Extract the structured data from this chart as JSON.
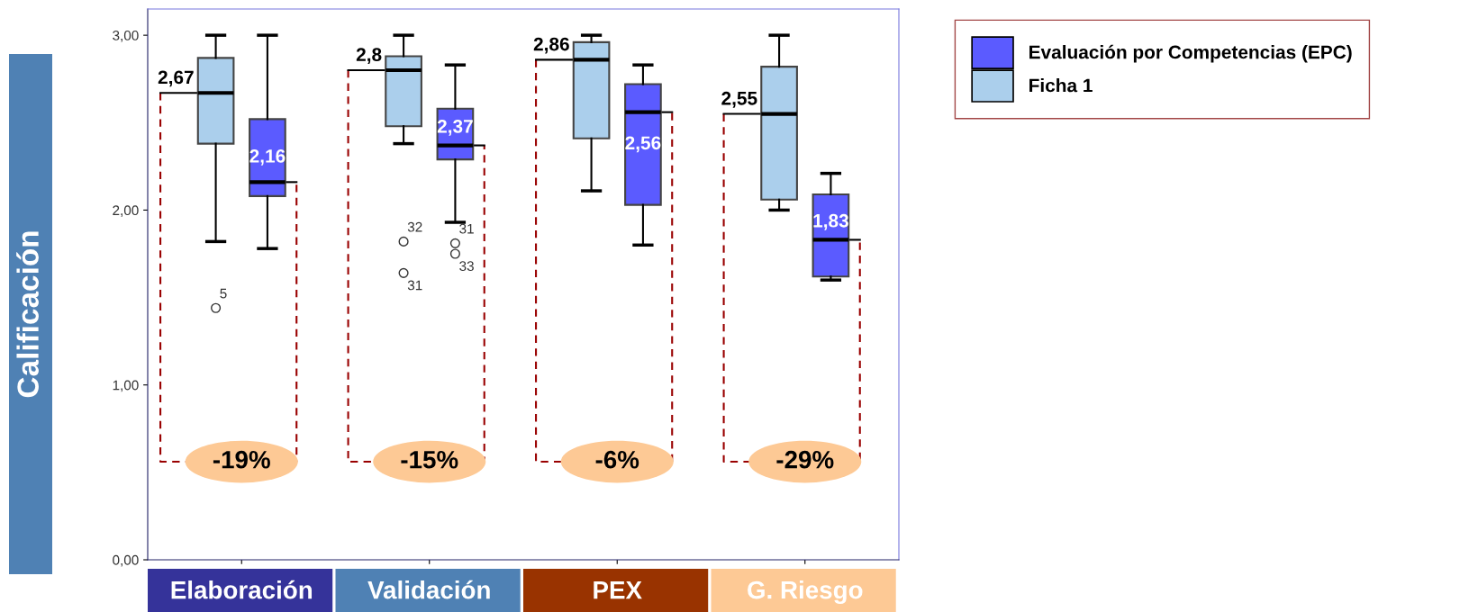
{
  "chart_data": {
    "type": "box",
    "ylabel": "Calificación",
    "categories": [
      "Elaboración",
      "Validación",
      "PEX",
      "G. Riesgo"
    ],
    "series": [
      {
        "name": "Ficha 1",
        "color": "#abcfec",
        "boxes": [
          {
            "low": 1.82,
            "q1": 2.38,
            "median": 2.67,
            "q3": 2.87,
            "high": 3.0,
            "outliers": [
              1.44
            ]
          },
          {
            "low": 2.38,
            "q1": 2.48,
            "median": 2.8,
            "q3": 2.88,
            "high": 3.0,
            "outliers": [
              1.82,
              1.64
            ]
          },
          {
            "low": 2.11,
            "q1": 2.41,
            "median": 2.86,
            "q3": 2.96,
            "high": 3.0
          },
          {
            "low": 2.0,
            "q1": 2.06,
            "median": 2.55,
            "q3": 2.82,
            "high": 3.0
          }
        ]
      },
      {
        "name": "Evaluación por Competencias (EPC)",
        "color": "#5b5bff",
        "boxes": [
          {
            "low": 1.78,
            "q1": 2.08,
            "median": 2.16,
            "q3": 2.52,
            "high": 3.0
          },
          {
            "low": 1.93,
            "q1": 2.29,
            "median": 2.37,
            "q3": 2.58,
            "high": 2.83,
            "outliers": [
              1.81,
              1.75
            ]
          },
          {
            "low": 1.8,
            "q1": 2.03,
            "median": 2.56,
            "q3": 2.72,
            "high": 2.83
          },
          {
            "low": 1.6,
            "q1": 1.62,
            "median": 1.83,
            "q3": 2.09,
            "high": 2.21
          }
        ]
      }
    ],
    "ylim": [
      0,
      3.15
    ],
    "yticks": [
      {
        "value": 0,
        "label": "0,00"
      },
      {
        "value": 1,
        "label": "1,00"
      },
      {
        "value": 2,
        "label": "2,00"
      },
      {
        "value": 3,
        "label": "3,00"
      }
    ],
    "legend": "top right",
    "grid": false,
    "annotations": [
      "2,67",
      "2,16",
      "2,8",
      "2,37",
      "2,86",
      "2,56",
      "2,55",
      "1,83",
      "5",
      "32",
      "31",
      "31",
      "33",
      "-19%",
      "-15%",
      "-6%",
      "-29%"
    ]
  }
}
